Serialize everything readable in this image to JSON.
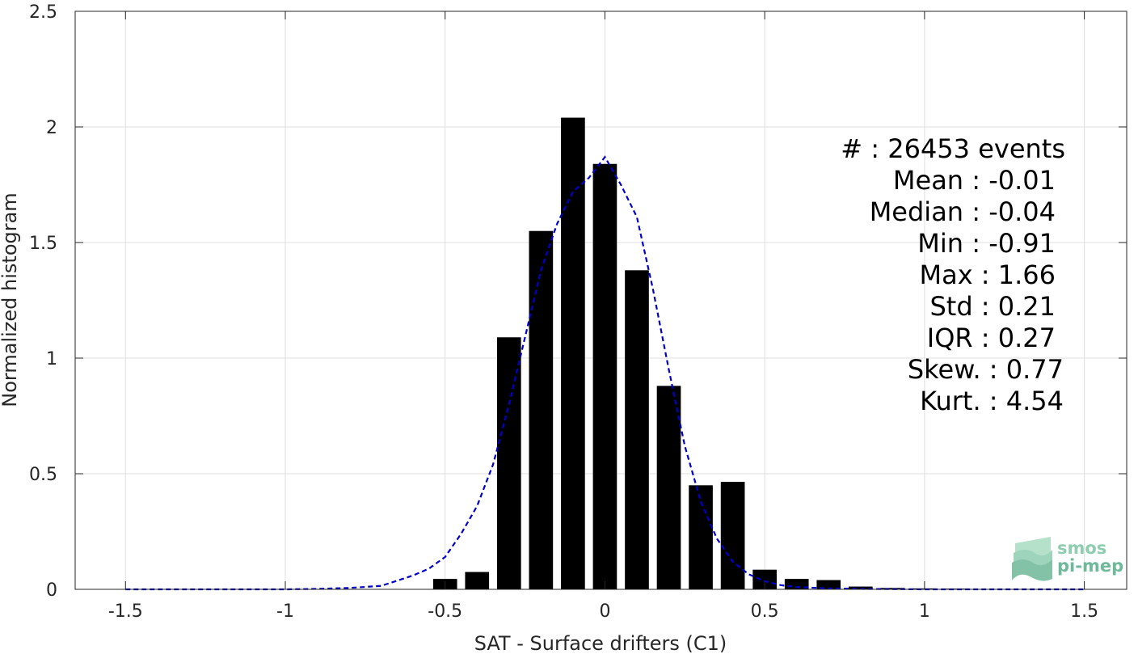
{
  "chart_data": {
    "type": "bar",
    "xlabel": "SAT - Surface drifters (C1)",
    "ylabel": "Normalized histogram",
    "xlim": [
      -1.6575,
      1.6325
    ],
    "ylim": [
      0,
      2.5
    ],
    "grid": true,
    "xticks": [
      -1.5,
      -1,
      -0.5,
      0,
      0.5,
      1,
      1.5
    ],
    "xtick_labels": [
      "-1.5",
      "-1",
      "-0.5",
      "0",
      "0.5",
      "1",
      "1.5"
    ],
    "yticks": [
      0,
      0.5,
      1,
      1.5,
      2,
      2.5
    ],
    "ytick_labels": [
      "0",
      "0.5",
      "1",
      "1.5",
      "2",
      "2.5"
    ],
    "bar_width": 0.075,
    "bars": {
      "x": [
        -0.5,
        -0.4,
        -0.3,
        -0.2,
        -0.1,
        0.0,
        0.1,
        0.2,
        0.3,
        0.4,
        0.5,
        0.6,
        0.7,
        0.8,
        0.9,
        1.0,
        1.1
      ],
      "values": [
        0.045,
        0.075,
        1.09,
        1.55,
        2.04,
        1.84,
        1.38,
        0.88,
        0.45,
        0.465,
        0.085,
        0.045,
        0.04,
        0.012,
        0.006,
        0.004,
        0.003
      ]
    },
    "fit_curve": {
      "style": "dashed",
      "color": "#0000cc",
      "x": [
        -1.5,
        -1.2,
        -1.0,
        -0.9,
        -0.8,
        -0.7,
        -0.6,
        -0.55,
        -0.5,
        -0.45,
        -0.4,
        -0.35,
        -0.3,
        -0.25,
        -0.2,
        -0.15,
        -0.1,
        -0.05,
        0.0,
        0.05,
        0.1,
        0.15,
        0.2,
        0.25,
        0.3,
        0.35,
        0.4,
        0.45,
        0.5,
        0.55,
        0.6,
        0.7,
        0.8,
        1.0,
        1.2,
        1.5
      ],
      "y": [
        0.0,
        0.0,
        0.0,
        0.002,
        0.006,
        0.015,
        0.06,
        0.09,
        0.14,
        0.24,
        0.36,
        0.54,
        0.8,
        1.09,
        1.38,
        1.58,
        1.72,
        1.78,
        1.87,
        1.75,
        1.61,
        1.3,
        0.95,
        0.62,
        0.38,
        0.22,
        0.12,
        0.065,
        0.035,
        0.018,
        0.01,
        0.004,
        0.002,
        0.0,
        0.0,
        0.0
      ]
    },
    "bar_color": "#000000",
    "stats": [
      "#  : 26453 events",
      "Mean : -0.01",
      "Median : -0.04",
      "Min : -0.91",
      "Max : 1.66",
      "Std : 0.21",
      "IQR : 0.27",
      "Skew. : 0.77",
      "Kurt. : 4.54"
    ],
    "stats_placement": "top-right"
  },
  "logo": {
    "line1": "smos",
    "line2": "pi-mep",
    "color": "#6fb89a"
  }
}
